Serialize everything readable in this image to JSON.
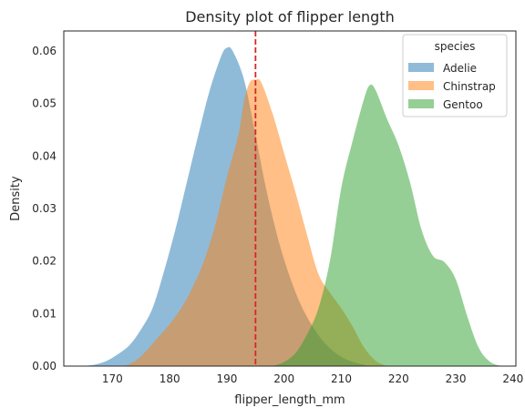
{
  "chart_data": {
    "type": "area",
    "title": "Density plot of flipper length",
    "xlabel": "flipper_length_mm",
    "ylabel": "Density",
    "xlim": [
      161.5,
      240.5
    ],
    "ylim": [
      0,
      0.0638
    ],
    "xticks": [
      170,
      180,
      190,
      200,
      210,
      220,
      230,
      240
    ],
    "yticks": [
      0.0,
      0.01,
      0.02,
      0.03,
      0.04,
      0.05,
      0.06
    ],
    "ytick_decimals": 2,
    "grid": false,
    "legend": {
      "title": "species",
      "placement": "top-right"
    },
    "reference_line": {
      "x": 195,
      "color": "#d62728",
      "style": "dashed"
    },
    "series": [
      {
        "name": "Adelie",
        "color": "#1f77b4",
        "opacity": 0.5,
        "points": [
          [
            165,
            0.0
          ],
          [
            167,
            0.0003
          ],
          [
            169,
            0.001
          ],
          [
            171,
            0.0023
          ],
          [
            173,
            0.004
          ],
          [
            175,
            0.007
          ],
          [
            177,
            0.011
          ],
          [
            179,
            0.018
          ],
          [
            181,
            0.026
          ],
          [
            183,
            0.035
          ],
          [
            185,
            0.044
          ],
          [
            187,
            0.0525
          ],
          [
            189,
            0.059
          ],
          [
            190,
            0.0606
          ],
          [
            191,
            0.06
          ],
          [
            193,
            0.0545
          ],
          [
            195,
            0.044
          ],
          [
            197,
            0.033
          ],
          [
            199,
            0.024
          ],
          [
            201,
            0.017
          ],
          [
            203,
            0.0115
          ],
          [
            205,
            0.0075
          ],
          [
            207,
            0.0045
          ],
          [
            209,
            0.0025
          ],
          [
            211,
            0.0012
          ],
          [
            213,
            0.0005
          ],
          [
            215,
            0.0
          ]
        ]
      },
      {
        "name": "Chinstrap",
        "color": "#ff7f0e",
        "opacity": 0.5,
        "points": [
          [
            172,
            0.0
          ],
          [
            174,
            0.001
          ],
          [
            176,
            0.003
          ],
          [
            178,
            0.0055
          ],
          [
            180,
            0.008
          ],
          [
            182,
            0.011
          ],
          [
            184,
            0.015
          ],
          [
            186,
            0.02
          ],
          [
            188,
            0.027
          ],
          [
            190,
            0.036
          ],
          [
            192,
            0.044
          ],
          [
            193,
            0.0505
          ],
          [
            194,
            0.054
          ],
          [
            195,
            0.0545
          ],
          [
            196,
            0.054
          ],
          [
            198,
            0.048
          ],
          [
            200,
            0.0405
          ],
          [
            202,
            0.033
          ],
          [
            204,
            0.025
          ],
          [
            206,
            0.0175
          ],
          [
            208,
            0.014
          ],
          [
            210,
            0.011
          ],
          [
            212,
            0.0075
          ],
          [
            214,
            0.0035
          ],
          [
            216,
            0.001
          ],
          [
            218,
            0.0
          ]
        ]
      },
      {
        "name": "Gentoo",
        "color": "#2ca02c",
        "opacity": 0.5,
        "points": [
          [
            198,
            0.0
          ],
          [
            200,
            0.0008
          ],
          [
            202,
            0.0025
          ],
          [
            204,
            0.006
          ],
          [
            206,
            0.011
          ],
          [
            208,
            0.02
          ],
          [
            210,
            0.034
          ],
          [
            212,
            0.043
          ],
          [
            214,
            0.051
          ],
          [
            215,
            0.0535
          ],
          [
            216,
            0.0525
          ],
          [
            218,
            0.047
          ],
          [
            220,
            0.042
          ],
          [
            222,
            0.035
          ],
          [
            224,
            0.026
          ],
          [
            226,
            0.021
          ],
          [
            228,
            0.0198
          ],
          [
            230,
            0.0165
          ],
          [
            232,
            0.0095
          ],
          [
            234,
            0.0035
          ],
          [
            236,
            0.0008
          ],
          [
            238,
            0.0
          ]
        ]
      }
    ]
  }
}
